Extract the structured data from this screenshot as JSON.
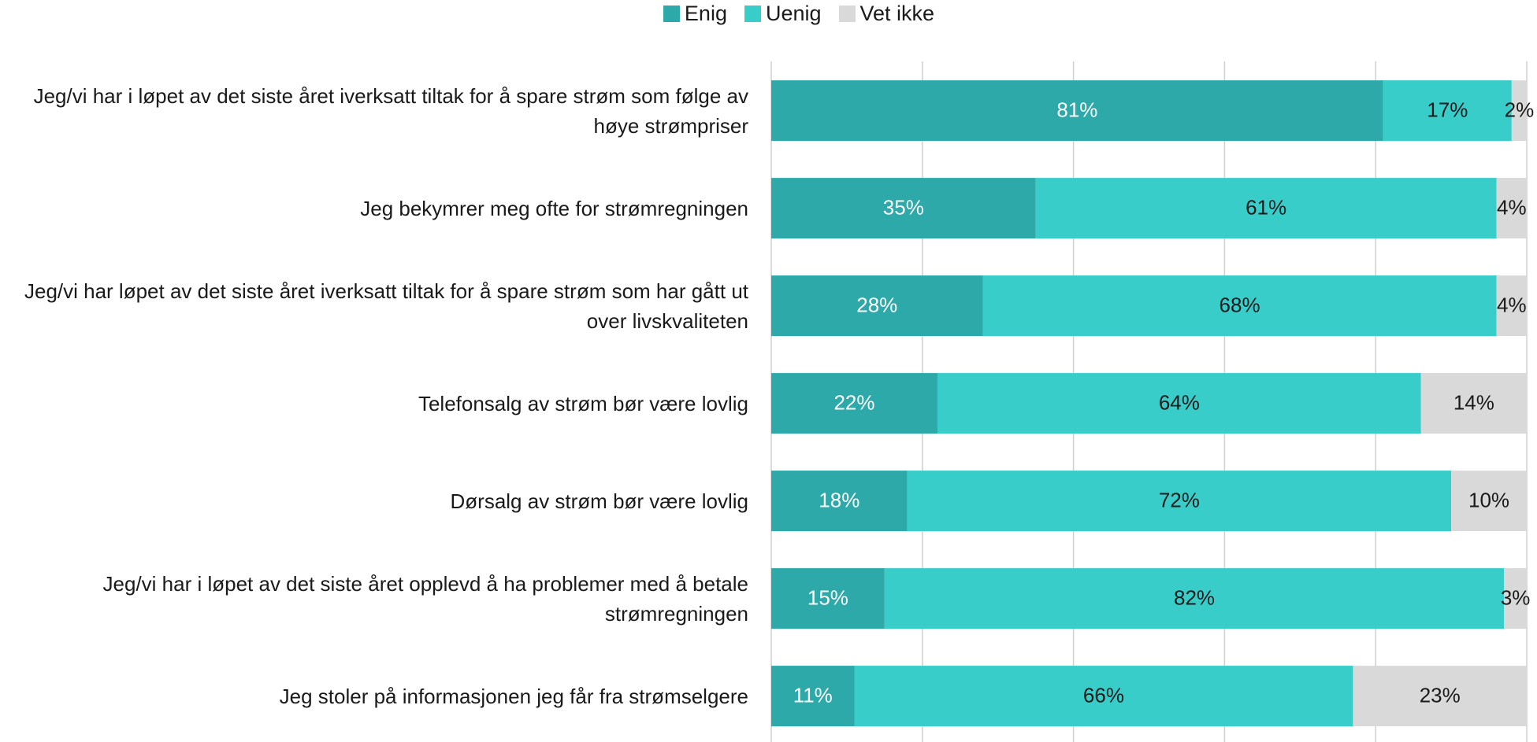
{
  "chart_data": {
    "type": "stacked_bar_horizontal",
    "categories": [
      "Jeg/vi har i løpet av det siste året iverksatt tiltak for å spare strøm som følge av høye strømpriser",
      "Jeg bekymrer meg ofte for strømregningen",
      "Jeg/vi har løpet av det siste året iverksatt tiltak for å spare strøm som har gått ut over livskvaliteten",
      "Telefonsalg av strøm bør være lovlig",
      "Dørsalg av strøm bør være lovlig",
      "Jeg/vi har i løpet av det siste året opplevd å ha problemer med å betale strømregningen",
      "Jeg stoler på informasjonen jeg får fra strømselgere"
    ],
    "series": [
      {
        "name": "Enig",
        "color": "#2ca9a8",
        "label_color": "#ffffff",
        "values": [
          81,
          35,
          28,
          22,
          18,
          15,
          11
        ],
        "value_labels": [
          "81%",
          "35%",
          "28%",
          "22%",
          "18%",
          "15%",
          "11%"
        ]
      },
      {
        "name": "Uenig",
        "color": "#38cdc9",
        "label_color": "#1a1a1a",
        "values": [
          17,
          61,
          68,
          64,
          72,
          82,
          66
        ],
        "value_labels": [
          "17%",
          "61%",
          "68%",
          "64%",
          "72%",
          "82%",
          "66%"
        ]
      },
      {
        "name": "Vet ikke",
        "color": "#d9d9d9",
        "label_color": "#1a1a1a",
        "values": [
          2,
          4,
          4,
          14,
          10,
          3,
          23
        ],
        "value_labels": [
          "2%",
          "4%",
          "4%",
          "14%",
          "10%",
          "3%",
          "23%"
        ]
      }
    ],
    "xlim": [
      0,
      100
    ],
    "xticks": [
      0,
      20,
      40,
      60,
      80,
      100
    ],
    "grid": true,
    "legend": "top"
  }
}
